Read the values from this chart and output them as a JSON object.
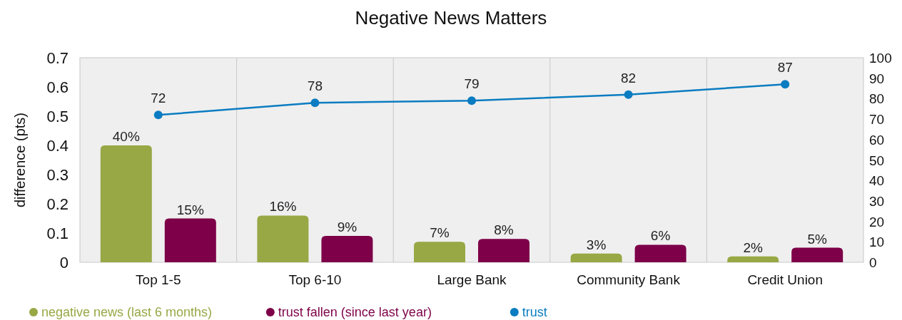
{
  "chart_data": {
    "type": "bar",
    "title": "Negative News Matters",
    "ylabel": "difference (pts)",
    "categories": [
      "Top 1-5",
      "Top 6-10",
      "Large Bank",
      "Community Bank",
      "Credit Union"
    ],
    "series": [
      {
        "name": "negative news (last 6 months)",
        "color": "#97a845",
        "values": [
          0.4,
          0.16,
          0.07,
          0.03,
          0.02
        ],
        "value_labels": [
          "40%",
          "16%",
          "7%",
          "3%",
          "2%"
        ]
      },
      {
        "name": "trust fallen (since last year)",
        "color": "#7d0049",
        "values": [
          0.15,
          0.09,
          0.08,
          0.06,
          0.05
        ],
        "value_labels": [
          "15%",
          "9%",
          "8%",
          "6%",
          "5%"
        ]
      },
      {
        "name": "trust",
        "type": "line",
        "axis": "y2",
        "color": "#0a7cc1",
        "marker": "circle",
        "values": [
          72,
          78,
          79,
          82,
          87
        ],
        "value_labels": [
          "72",
          "78",
          "79",
          "82",
          "87"
        ]
      }
    ],
    "ylim": [
      0,
      0.7
    ],
    "yticks": [
      0,
      0.1,
      0.2,
      0.3,
      0.4,
      0.5,
      0.6,
      0.7
    ],
    "y2lim": [
      0,
      100
    ],
    "y2ticks": [
      0,
      10,
      20,
      30,
      40,
      50,
      60,
      70,
      80,
      90,
      100
    ],
    "grid": "x",
    "legend": "bottom left"
  }
}
